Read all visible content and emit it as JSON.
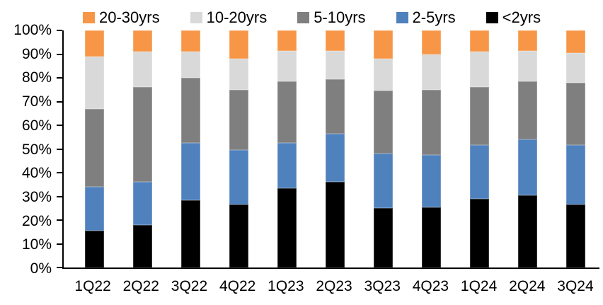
{
  "chart_data": {
    "type": "bar",
    "subtype": "100%-stacked",
    "title": "",
    "xlabel": "",
    "ylabel": "",
    "grid": false,
    "legend_position": "top",
    "legend_order": [
      "20-30yrs",
      "10-20yrs",
      "5-10yrs",
      "2-5yrs",
      "<2yrs"
    ],
    "categories": [
      "1Q22",
      "2Q22",
      "3Q22",
      "4Q22",
      "1Q23",
      "2Q23",
      "3Q23",
      "4Q23",
      "1Q24",
      "2Q24",
      "3Q24"
    ],
    "series": [
      {
        "name": "<2yrs",
        "color": "#000000",
        "values": [
          15.5,
          18.0,
          28.5,
          26.5,
          33.5,
          36.0,
          25.0,
          25.5,
          29.0,
          30.5,
          26.5
        ]
      },
      {
        "name": "2-5yrs",
        "color": "#4F81BD",
        "values": [
          18.5,
          18.0,
          24.0,
          23.0,
          19.0,
          20.5,
          23.0,
          22.0,
          22.5,
          23.5,
          25.0
        ]
      },
      {
        "name": "5-10yrs",
        "color": "#7F7F7F",
        "values": [
          33.0,
          40.0,
          27.5,
          25.5,
          26.0,
          23.0,
          26.5,
          27.5,
          24.5,
          24.5,
          26.5
        ]
      },
      {
        "name": "10-20yrs",
        "color": "#D9D9D9",
        "values": [
          22.0,
          15.0,
          11.0,
          13.0,
          13.0,
          12.0,
          13.5,
          15.0,
          15.0,
          13.0,
          12.5
        ]
      },
      {
        "name": "20-30yrs",
        "color": "#F79646",
        "values": [
          11.0,
          9.0,
          9.0,
          12.0,
          8.5,
          8.5,
          12.0,
          10.0,
          9.0,
          8.5,
          9.5
        ]
      }
    ],
    "y_axis": {
      "min": 0,
      "max": 100,
      "step": 10,
      "tick_labels": [
        "100%",
        "90%",
        "80%",
        "70%",
        "60%",
        "50%",
        "40%",
        "30%",
        "20%",
        "10%",
        "0%"
      ]
    },
    "axis_color": "#000000",
    "background_color": "#FFFFFF"
  }
}
